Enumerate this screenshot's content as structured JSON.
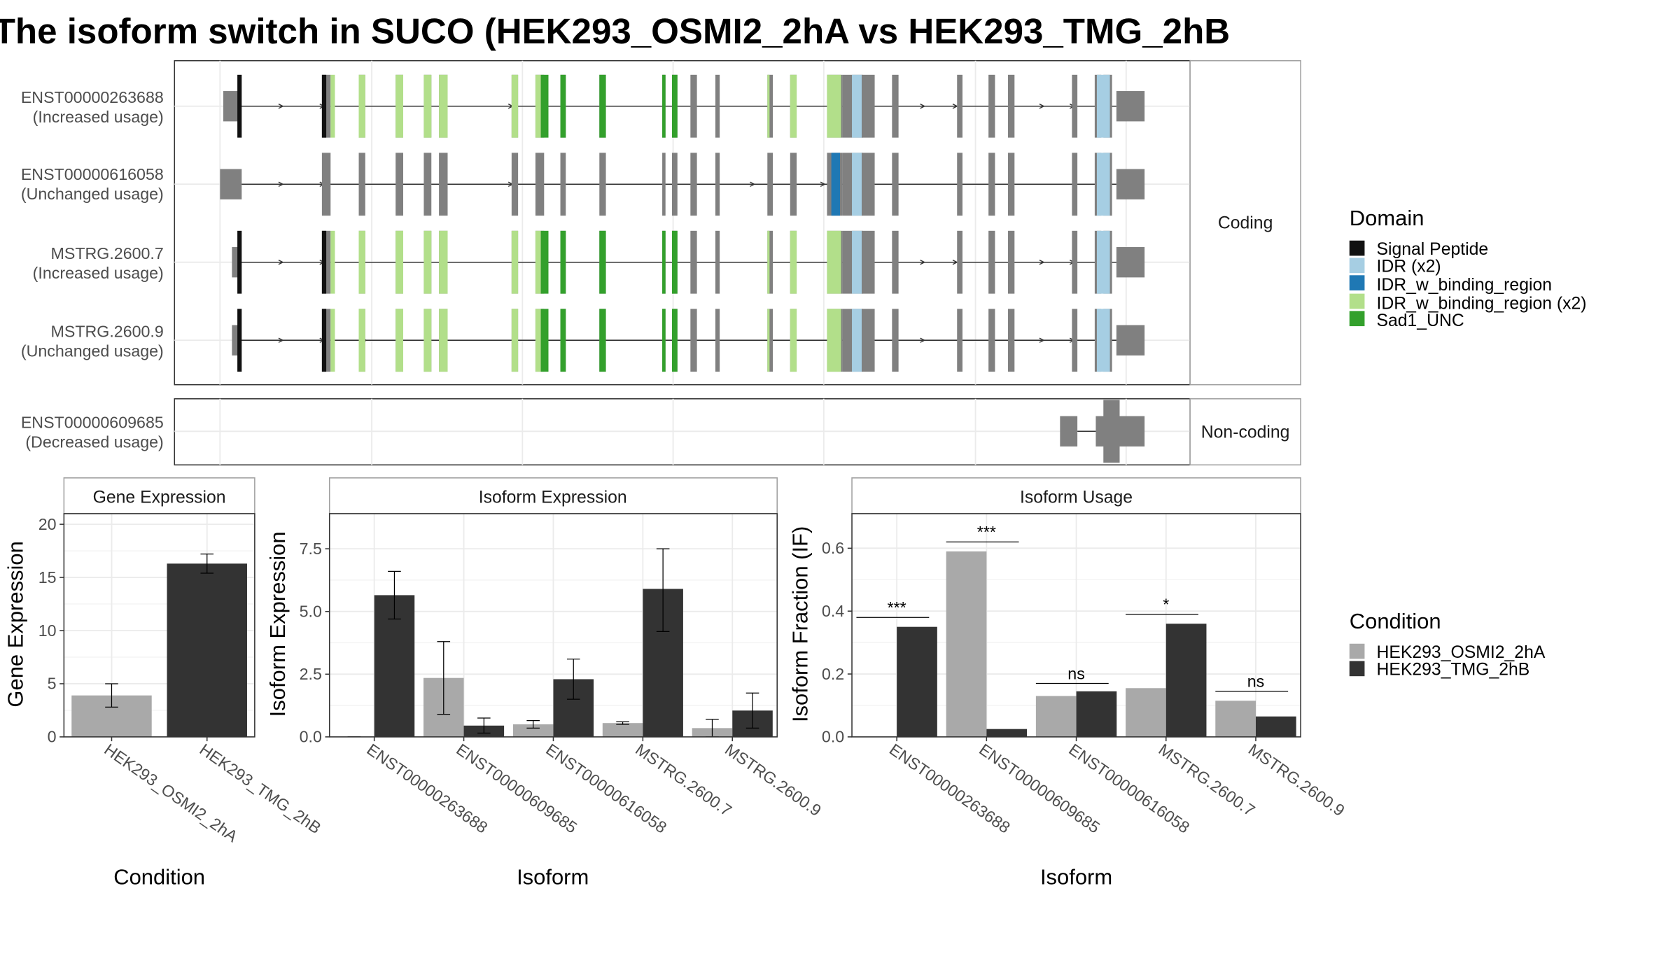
{
  "title": "The isoform switch in SUCO (HEK293_OSMI2_2hA vs HEK293_TMG_2hB",
  "colors": {
    "condition_a": "#a9a9a9",
    "condition_b": "#333333",
    "exon": "#808080",
    "signal_peptide": "#111111",
    "idr": "#a6cee3",
    "idr_w_binding_region": "#1f78b4",
    "idr_w_binding_region_x2": "#b2df8a",
    "sad1_unc": "#33a02c"
  },
  "transcript_panel": {
    "facets": [
      "Coding",
      "Non-coding"
    ],
    "transcripts": [
      {
        "id": "ENST00000263688",
        "usage": "(Increased usage)",
        "group": "Coding"
      },
      {
        "id": "ENST00000616058",
        "usage": "(Unchanged usage)",
        "group": "Coding"
      },
      {
        "id": "MSTRG.2600.7",
        "usage": "(Increased usage)",
        "group": "Coding"
      },
      {
        "id": "MSTRG.2600.9",
        "usage": "(Unchanged usage)",
        "group": "Coding"
      },
      {
        "id": "ENST00000609685",
        "usage": "(Decreased usage)",
        "group": "Non-coding"
      }
    ]
  },
  "legends": {
    "domain": {
      "title": "Domain",
      "items": [
        {
          "label": "Signal Peptide",
          "color": "#111111"
        },
        {
          "label": "IDR (x2)",
          "color": "#a6cee3"
        },
        {
          "label": "IDR_w_binding_region",
          "color": "#1f78b4"
        },
        {
          "label": "IDR_w_binding_region (x2)",
          "color": "#b2df8a"
        },
        {
          "label": "Sad1_UNC",
          "color": "#33a02c"
        }
      ]
    },
    "condition": {
      "title": "Condition",
      "items": [
        {
          "label": "HEK293_OSMI2_2hA",
          "color": "#a9a9a9"
        },
        {
          "label": "HEK293_TMG_2hB",
          "color": "#333333"
        }
      ]
    }
  },
  "chart_data": [
    {
      "type": "bar",
      "title": "Gene Expression",
      "xlabel": "Condition",
      "ylabel": "Gene Expression",
      "ylim": [
        0,
        21
      ],
      "yticks": [
        0,
        5,
        10,
        15,
        20
      ],
      "categories": [
        "HEK293_OSMI2_2hA",
        "HEK293_TMG_2hB"
      ],
      "values": [
        3.9,
        16.3
      ],
      "errors": [
        [
          2.8,
          5.0
        ],
        [
          15.4,
          17.2
        ]
      ]
    },
    {
      "type": "bar",
      "title": "Isoform Expression",
      "xlabel": "Isoform",
      "ylabel": "Isoform Expression",
      "ylim": [
        0,
        8.9
      ],
      "yticks": [
        0.0,
        2.5,
        5.0,
        7.5
      ],
      "ytick_labels": [
        "0.0",
        "2.5",
        "5.0",
        "7.5"
      ],
      "categories": [
        "ENST00000263688",
        "ENST00000609685",
        "ENST00000616058",
        "MSTRG.2600.7",
        "MSTRG.2600.9"
      ],
      "series": [
        {
          "name": "HEK293_OSMI2_2hA",
          "values": [
            0.0,
            2.35,
            0.5,
            0.55,
            0.35
          ],
          "errors": [
            [
              0.0,
              0.0
            ],
            [
              0.9,
              3.8
            ],
            [
              0.35,
              0.65
            ],
            [
              0.5,
              0.6
            ],
            [
              0.0,
              0.7
            ]
          ]
        },
        {
          "name": "HEK293_TMG_2hB",
          "values": [
            5.65,
            0.45,
            2.3,
            5.9,
            1.05
          ],
          "errors": [
            [
              4.7,
              6.6
            ],
            [
              0.15,
              0.75
            ],
            [
              1.5,
              3.1
            ],
            [
              4.2,
              7.5
            ],
            [
              0.35,
              1.75
            ]
          ]
        }
      ]
    },
    {
      "type": "bar",
      "title": "Isoform Usage",
      "xlabel": "Isoform",
      "ylabel": "Isoform Fraction (IF)",
      "ylim": [
        0,
        0.71
      ],
      "yticks": [
        0.0,
        0.2,
        0.4,
        0.6
      ],
      "ytick_labels": [
        "0.0",
        "0.2",
        "0.4",
        "0.6"
      ],
      "categories": [
        "ENST00000263688",
        "ENST00000609685",
        "ENST00000616058",
        "MSTRG.2600.7",
        "MSTRG.2600.9"
      ],
      "series": [
        {
          "name": "HEK293_OSMI2_2hA",
          "values": [
            0.0,
            0.59,
            0.13,
            0.155,
            0.115
          ]
        },
        {
          "name": "HEK293_TMG_2hB",
          "values": [
            0.35,
            0.025,
            0.145,
            0.36,
            0.065
          ]
        }
      ],
      "significance": [
        "***",
        "***",
        "ns",
        "*",
        "ns"
      ],
      "significance_y": [
        0.38,
        0.62,
        0.17,
        0.39,
        0.145
      ]
    }
  ]
}
